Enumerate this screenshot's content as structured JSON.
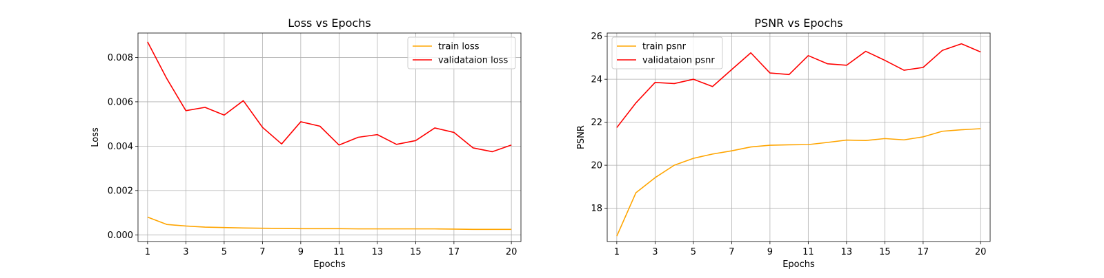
{
  "chart_data": [
    {
      "type": "line",
      "title": "Loss vs Epochs",
      "xlabel": "Epochs",
      "ylabel": "Loss",
      "xlim": [
        0.5,
        20.5
      ],
      "ylim": [
        -0.0003,
        0.0091
      ],
      "xticks": [
        1,
        3,
        5,
        7,
        9,
        11,
        13,
        15,
        17,
        20
      ],
      "xtick_labels": [
        "1",
        "3",
        "5",
        "7",
        "9",
        "11",
        "13",
        "15",
        "17",
        "20"
      ],
      "yticks": [
        0,
        0.002,
        0.004,
        0.006,
        0.008
      ],
      "ytick_labels": [
        "0.000",
        "0.002",
        "0.004",
        "0.006",
        "0.008"
      ],
      "grid": true,
      "legend_position": "top-right",
      "x": [
        1,
        2,
        3,
        4,
        5,
        6,
        7,
        8,
        9,
        10,
        11,
        12,
        13,
        14,
        15,
        16,
        17,
        18,
        19,
        20
      ],
      "series": [
        {
          "name": "train loss",
          "color": "#ffa500",
          "values": [
            0.0008,
            0.00047,
            0.0004,
            0.00035,
            0.00033,
            0.00031,
            0.0003,
            0.00029,
            0.00028,
            0.00028,
            0.00028,
            0.00027,
            0.00027,
            0.00027,
            0.00027,
            0.00027,
            0.00026,
            0.00025,
            0.00025,
            0.00025
          ]
        },
        {
          "name": "validataion loss",
          "color": "#ff0000",
          "values": [
            0.0087,
            0.00705,
            0.0056,
            0.00575,
            0.0054,
            0.00605,
            0.00485,
            0.0041,
            0.0051,
            0.0049,
            0.00405,
            0.0044,
            0.00452,
            0.00408,
            0.00425,
            0.00482,
            0.00462,
            0.00392,
            0.00375,
            0.00405
          ]
        }
      ]
    },
    {
      "type": "line",
      "title": "PSNR vs Epochs",
      "xlabel": "Epochs",
      "ylabel": "PSNR",
      "xlim": [
        0.5,
        20.5
      ],
      "ylim": [
        16.45,
        26.15
      ],
      "xticks": [
        1,
        3,
        5,
        7,
        9,
        11,
        13,
        15,
        17,
        20
      ],
      "xtick_labels": [
        "1",
        "3",
        "5",
        "7",
        "9",
        "11",
        "13",
        "15",
        "17",
        "20"
      ],
      "yticks": [
        18,
        20,
        22,
        24,
        26
      ],
      "ytick_labels": [
        "18",
        "20",
        "22",
        "24",
        "26"
      ],
      "grid": true,
      "legend_position": "top-left",
      "x": [
        1,
        2,
        3,
        4,
        5,
        6,
        7,
        8,
        9,
        10,
        11,
        12,
        13,
        14,
        15,
        16,
        17,
        18,
        19,
        20
      ],
      "series": [
        {
          "name": "train psnr",
          "color": "#ffa500",
          "values": [
            16.7,
            18.72,
            19.42,
            20.0,
            20.32,
            20.52,
            20.67,
            20.85,
            20.93,
            20.95,
            20.96,
            21.06,
            21.17,
            21.15,
            21.24,
            21.18,
            21.32,
            21.58,
            21.65,
            21.7
          ]
        },
        {
          "name": "validataion psnr",
          "color": "#ff0000",
          "values": [
            21.75,
            22.9,
            23.85,
            23.8,
            24.0,
            23.66,
            24.45,
            25.23,
            24.29,
            24.22,
            25.1,
            24.72,
            24.65,
            25.3,
            24.88,
            24.42,
            24.55,
            25.34,
            25.65,
            25.27
          ]
        }
      ]
    }
  ]
}
